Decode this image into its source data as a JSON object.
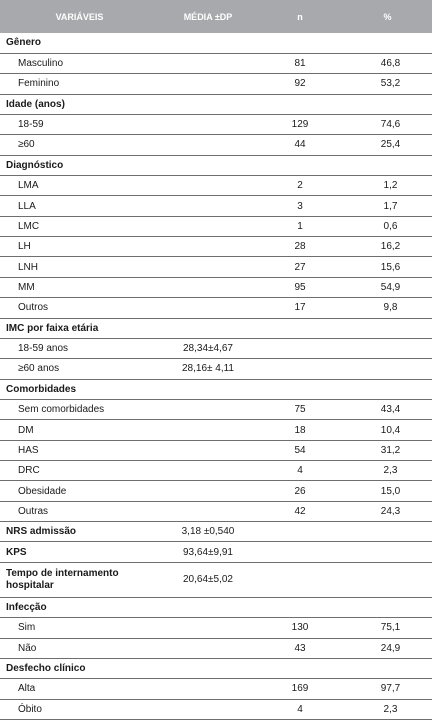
{
  "header": {
    "variaveis": "VARIÁVEIS",
    "media": "MÉDIA ±DP",
    "n": "n",
    "pct": "%"
  },
  "sections": {
    "genero": {
      "label": "Gênero",
      "rows": [
        {
          "label": "Masculino",
          "n": "81",
          "pct": "46,8"
        },
        {
          "label": "Feminino",
          "n": "92",
          "pct": "53,2"
        }
      ]
    },
    "idade": {
      "label": "Idade (anos)",
      "rows": [
        {
          "label": "18-59",
          "n": "129",
          "pct": "74,6"
        },
        {
          "label": "≥60",
          "n": "44",
          "pct": "25,4"
        }
      ]
    },
    "diagnostico": {
      "label": "Diagnóstico",
      "rows": [
        {
          "label": "LMA",
          "n": "2",
          "pct": "1,2"
        },
        {
          "label": "LLA",
          "n": "3",
          "pct": "1,7"
        },
        {
          "label": "LMC",
          "n": "1",
          "pct": "0,6"
        },
        {
          "label": "LH",
          "n": "28",
          "pct": "16,2"
        },
        {
          "label": "LNH",
          "n": "27",
          "pct": "15,6"
        },
        {
          "label": "MM",
          "n": "95",
          "pct": "54,9"
        },
        {
          "label": "Outros",
          "n": "17",
          "pct": "9,8"
        }
      ]
    },
    "imc": {
      "label": "IMC por faixa etária",
      "rows": [
        {
          "label": "18-59 anos",
          "mean": "28,34±4,67"
        },
        {
          "label": "≥60 anos",
          "mean": "28,16± 4,11"
        }
      ]
    },
    "comorbidades": {
      "label": "Comorbidades",
      "rows": [
        {
          "label": "Sem comorbidades",
          "n": "75",
          "pct": "43,4"
        },
        {
          "label": "DM",
          "n": "18",
          "pct": "10,4"
        },
        {
          "label": "HAS",
          "n": "54",
          "pct": "31,2"
        },
        {
          "label": "DRC",
          "n": "4",
          "pct": "2,3"
        },
        {
          "label": "Obesidade",
          "n": "26",
          "pct": "15,0"
        },
        {
          "label": "Outras",
          "n": "42",
          "pct": "24,3"
        }
      ]
    },
    "nrs": {
      "label": "NRS admissão",
      "mean": "3,18 ±0,540"
    },
    "kps": {
      "label": "KPS",
      "mean": "93,64±9,91"
    },
    "tempo": {
      "label_line1": "Tempo de internamento",
      "label_line2": "hospitalar",
      "mean": "20,64±5,02"
    },
    "infeccao": {
      "label": "Infecção",
      "rows": [
        {
          "label": "Sim",
          "n": "130",
          "pct": "75,1"
        },
        {
          "label": "Não",
          "n": "43",
          "pct": "24,9"
        }
      ]
    },
    "desfecho": {
      "label": "Desfecho clínico",
      "rows": [
        {
          "label": "Alta",
          "n": "169",
          "pct": "97,7"
        },
        {
          "label": "Óbito",
          "n": "4",
          "pct": "2,3"
        }
      ]
    }
  }
}
